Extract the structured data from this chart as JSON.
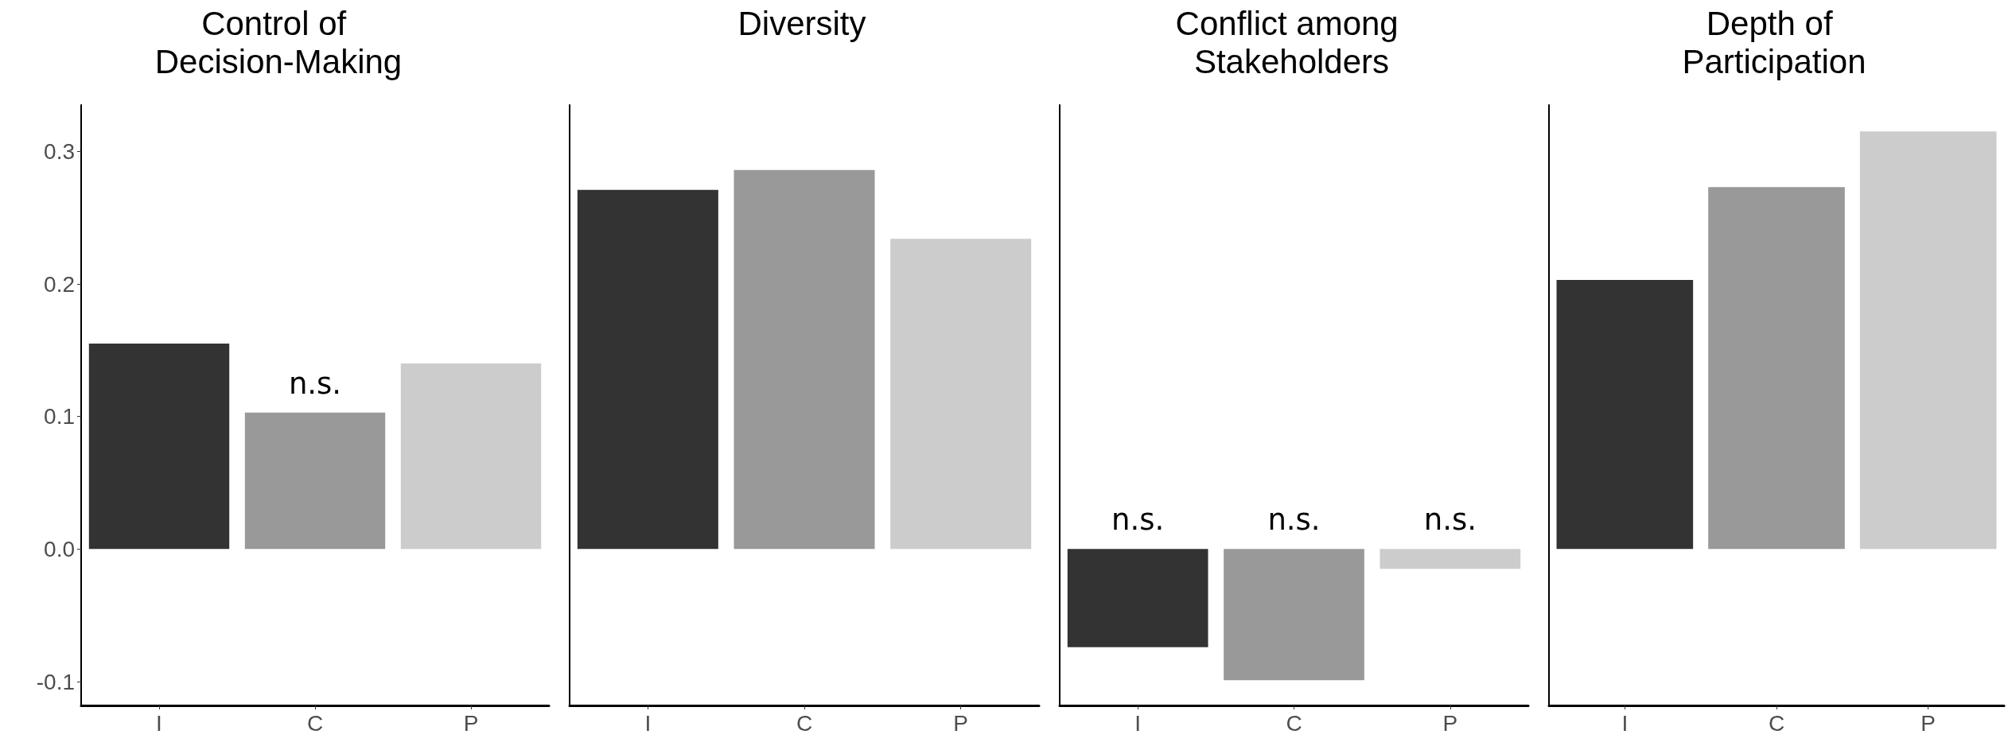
{
  "chart_data": [
    {
      "type": "bar",
      "title": "Control of Decision-Making",
      "categories": [
        "I",
        "C",
        "P"
      ],
      "values": [
        0.155,
        0.103,
        0.14
      ],
      "colors": [
        "#333333",
        "#999999",
        "#cccccc"
      ],
      "ylim": [
        -0.118,
        0.335
      ],
      "yticks": [
        -0.1,
        {
          "value": 0,
          "label": "0.0"
        },
        0.1,
        0.2,
        0.3
      ],
      "grid": false,
      "annotations": [
        {
          "text": "n.s.",
          "x": "C",
          "y": 0.103
        }
      ]
    },
    {
      "type": "bar",
      "title": "Diversity",
      "categories": [
        "I",
        "C",
        "P"
      ],
      "values": [
        0.271,
        0.286,
        0.234
      ],
      "colors": [
        "#333333",
        "#999999",
        "#cccccc"
      ],
      "ylim": [
        -0.118,
        0.335
      ],
      "grid": false,
      "tick_labels": "x"
    },
    {
      "type": "bar",
      "title": "Conflict among Stakeholders",
      "categories": [
        "I",
        "C",
        "P"
      ],
      "values": [
        -0.074,
        -0.099,
        -0.015
      ],
      "colors": [
        "#333333",
        "#999999",
        "#cccccc"
      ],
      "ylim": [
        -0.118,
        0.335
      ],
      "grid": false,
      "tick_labels": "x",
      "annotations": [
        {
          "text": "n.s.",
          "x": "I",
          "y": 0
        },
        {
          "text": "n.s.",
          "x": "C",
          "y": 0
        },
        {
          "text": "n.s.",
          "x": "P",
          "y": 0
        }
      ]
    },
    {
      "type": "bar",
      "title": "Depth of Participation",
      "categories": [
        "I",
        "C",
        "P"
      ],
      "values": [
        0.203,
        0.273,
        0.315
      ],
      "colors": [
        "#333333",
        "#999999",
        "#cccccc"
      ],
      "ylim": [
        -0.118,
        0.335
      ],
      "grid": false,
      "tick_labels": "x"
    }
  ]
}
